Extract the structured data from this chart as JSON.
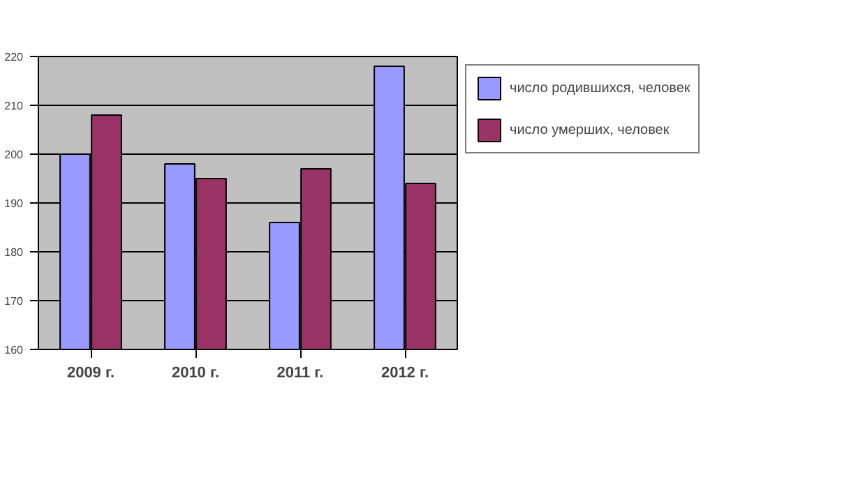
{
  "chart_data": {
    "type": "bar",
    "categories": [
      "2009 г.",
      "2010 г.",
      "2011 г.",
      "2012 г."
    ],
    "series": [
      {
        "name": "число родившихся, человек",
        "color": "#9999ff",
        "values": [
          200,
          198,
          186,
          218
        ]
      },
      {
        "name": "число умерших, человек",
        "color": "#993366",
        "values": [
          208,
          195,
          197,
          194
        ]
      }
    ],
    "ylim": [
      160,
      220
    ],
    "yticks": [
      160,
      170,
      180,
      190,
      200,
      210,
      220
    ],
    "grid": "y",
    "legend": "right"
  }
}
